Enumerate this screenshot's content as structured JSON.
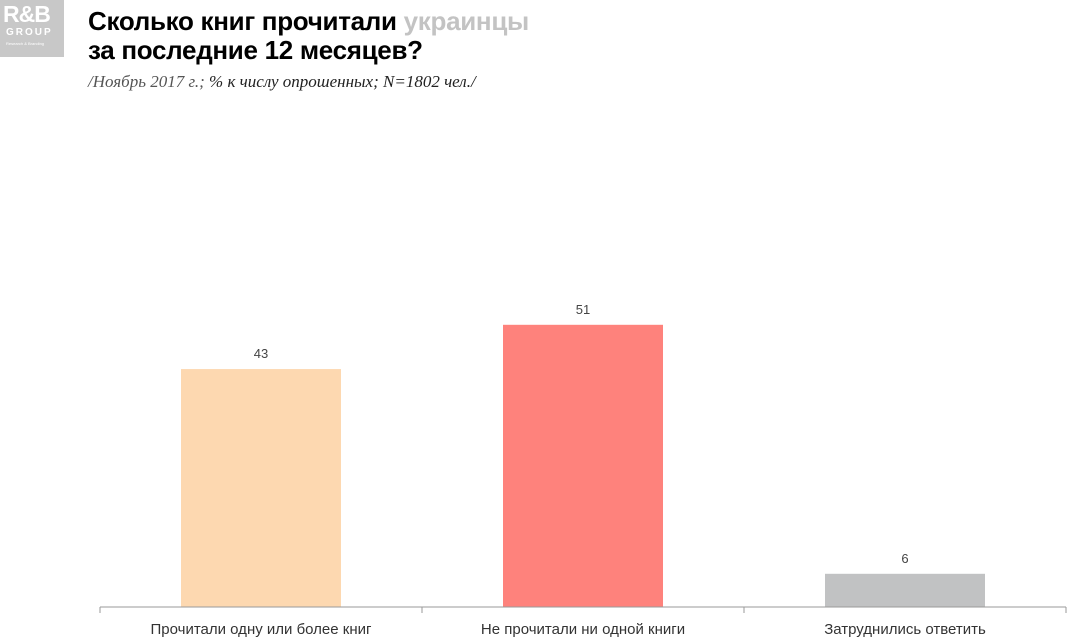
{
  "logo": {
    "main": "R&B",
    "sub": "GROUP",
    "tag": "Research & Branding"
  },
  "header": {
    "title_line1_prefix": "Сколько книг прочитали ",
    "title_line1_highlight": "украинцы",
    "title_line2": "за последние 12 месяцев?",
    "subtitle_date": "/Ноябрь 2017 г.; ",
    "subtitle_rest": "% к числу опрошенных; N=1802 чел./"
  },
  "colors": {
    "highlight": "#c3c3c3",
    "axis": "#9a9a9a"
  },
  "chart_data": {
    "type": "bar",
    "categories": [
      "Прочитали одну или более книг",
      "Не прочитали ни одной книги",
      "Затруднились ответить"
    ],
    "values": [
      43,
      51,
      6
    ],
    "colors": [
      "#fdd8b0",
      "#fe827c",
      "#c1c2c3"
    ],
    "data_labels": [
      "43",
      "51",
      "6"
    ],
    "ylim": [
      0,
      60
    ],
    "grid": false,
    "legend": "none"
  }
}
